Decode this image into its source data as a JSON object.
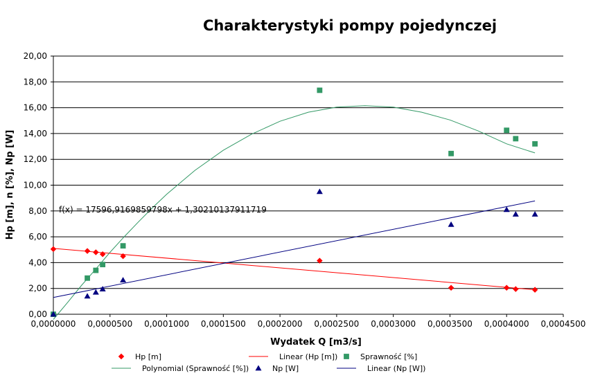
{
  "chart_data": {
    "type": "scatter",
    "title": "Charakterystyki pompy pojedynczej",
    "xlabel": "Wydatek Q [m3/s]",
    "ylabel": "Hp [m], n [%], Np [W]",
    "xlim": [
      0,
      0.00045
    ],
    "ylim": [
      0,
      20
    ],
    "x_ticks": [
      0,
      5e-05,
      0.0001,
      0.00015,
      0.0002,
      0.00025,
      0.0003,
      0.00035,
      0.0004,
      0.00045
    ],
    "x_tick_labels": [
      "0,0000000",
      "0,0000500",
      "0,0001000",
      "0,0001500",
      "0,0002000",
      "0,0002500",
      "0,0003000",
      "0,0003500",
      "0,0004000",
      "0,0004500"
    ],
    "y_ticks": [
      0,
      2,
      4,
      6,
      8,
      10,
      12,
      14,
      16,
      18,
      20
    ],
    "y_tick_labels": [
      "0,00",
      "2,00",
      "4,00",
      "6,00",
      "8,00",
      "10,00",
      "12,00",
      "14,00",
      "16,00",
      "18,00",
      "20,00"
    ],
    "grid": "horizontal",
    "legend_position": "bottom",
    "annotation": "f(x) = 17596,9169859798x + 1,30210137911719",
    "series": [
      {
        "name": "Hp [m]",
        "kind": "points",
        "marker": "diamond",
        "color": "#ff0000",
        "x": [
          0,
          3e-05,
          3.75e-05,
          4.35e-05,
          6.15e-05,
          0.000235,
          0.000351,
          0.0004,
          0.000408,
          0.000425
        ],
        "y": [
          5.05,
          4.9,
          4.8,
          4.65,
          4.5,
          4.15,
          2.05,
          2.05,
          1.95,
          1.9
        ]
      },
      {
        "name": "Linear (Hp [m])",
        "kind": "line",
        "color": "#ff0000",
        "x": [
          0,
          0.000425
        ],
        "y": [
          5.1,
          1.9
        ]
      },
      {
        "name": "Sprawność [%]",
        "kind": "points",
        "marker": "square",
        "color": "#339966",
        "x": [
          0,
          3e-05,
          3.75e-05,
          4.35e-05,
          6.15e-05,
          0.000235,
          0.000351,
          0.0004,
          0.000408,
          0.000425
        ],
        "y": [
          0,
          2.8,
          3.4,
          3.85,
          5.3,
          17.35,
          12.45,
          14.25,
          13.6,
          13.2
        ]
      },
      {
        "name": "Polynomial (Sprawność [%])",
        "kind": "curve",
        "color": "#339966",
        "x": [
          0,
          1.25e-05,
          2.5e-05,
          3.75e-05,
          5e-05,
          6.25e-05,
          7.5e-05,
          8.75e-05,
          0.0001,
          0.000125,
          0.00015,
          0.000175,
          0.0002,
          0.000225,
          0.00025,
          0.000275,
          0.0003,
          0.000325,
          0.00035,
          0.000375,
          0.0004,
          0.000425
        ],
        "y": [
          -0.4,
          0.9,
          2.25,
          3.5,
          4.8,
          6.0,
          7.15,
          8.25,
          9.3,
          11.15,
          12.7,
          13.95,
          14.95,
          15.65,
          16.05,
          16.15,
          16.05,
          15.65,
          15.05,
          14.2,
          13.2,
          12.5
        ]
      },
      {
        "name": "Np [W]",
        "kind": "points",
        "marker": "triangle",
        "color": "#000080",
        "x": [
          0,
          3e-05,
          3.75e-05,
          4.35e-05,
          6.15e-05,
          0.000235,
          0.000351,
          0.0004,
          0.000408,
          0.000425
        ],
        "y": [
          0,
          1.4,
          1.7,
          1.95,
          2.65,
          9.5,
          6.95,
          8.1,
          7.75,
          7.75
        ]
      },
      {
        "name": "Linear (Np [W])",
        "kind": "line",
        "color": "#000080",
        "x": [
          0,
          0.000425
        ],
        "y": [
          1.3,
          8.78
        ]
      }
    ],
    "legend": [
      {
        "label": "Hp [m]",
        "marker": "diamond",
        "color": "#ff0000"
      },
      {
        "label": "Linear (Hp [m])",
        "marker": "line",
        "color": "#ff0000"
      },
      {
        "label": "Sprawność [%]",
        "marker": "square",
        "color": "#339966"
      },
      {
        "label": "Polynomial (Sprawność [%])",
        "marker": "line",
        "color": "#339966"
      },
      {
        "label": "Np [W]",
        "marker": "triangle",
        "color": "#000080"
      },
      {
        "label": "Linear (Np [W])",
        "marker": "line",
        "color": "#000080"
      }
    ]
  }
}
